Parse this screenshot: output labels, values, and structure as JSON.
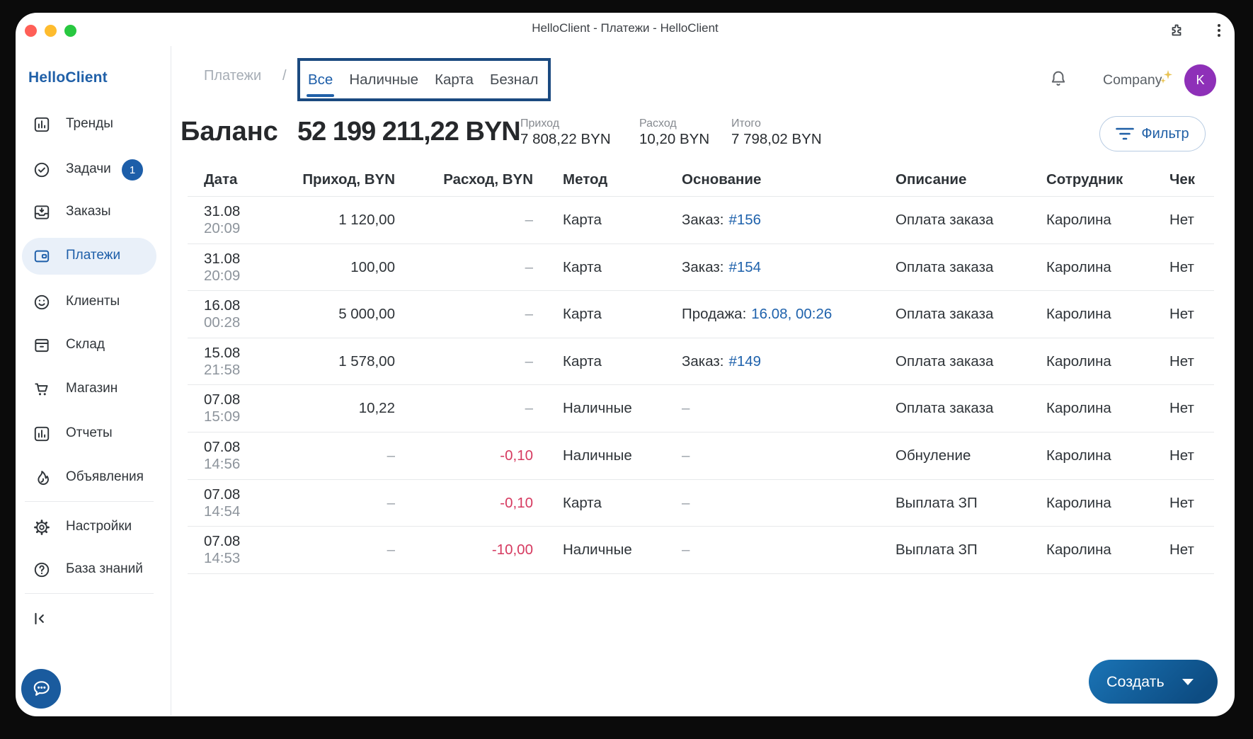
{
  "titlebar": {
    "title": "HelloClient - Платежи - HelloClient"
  },
  "sidebar": {
    "logo": "HelloClient",
    "items": [
      {
        "label": "Тренды",
        "icon": "bar-chart-icon"
      },
      {
        "label": "Задачи",
        "icon": "check-circle-icon",
        "badge": "1"
      },
      {
        "label": "Заказы",
        "icon": "inbox-icon"
      },
      {
        "label": "Платежи",
        "icon": "wallet-icon",
        "active": true
      },
      {
        "label": "Клиенты",
        "icon": "smiley-icon"
      },
      {
        "label": "Склад",
        "icon": "box-icon"
      },
      {
        "label": "Магазин",
        "icon": "cart-icon"
      },
      {
        "label": "Отчеты",
        "icon": "bar-chart-icon"
      },
      {
        "label": "Объявления",
        "icon": "flame-icon",
        "divider_after": true
      },
      {
        "label": "Настройки",
        "icon": "gear-icon"
      },
      {
        "label": "База знаний",
        "icon": "question-circle-icon",
        "divider_after": true
      }
    ]
  },
  "header": {
    "breadcrumb": "Платежи",
    "separator": "/",
    "tabs": [
      {
        "label": "Все",
        "active": true
      },
      {
        "label": "Наличные"
      },
      {
        "label": "Карта"
      },
      {
        "label": "Безнал"
      }
    ],
    "company": "Company",
    "avatar_letter": "K"
  },
  "balance": {
    "label": "Баланс",
    "value": "52 199 211,22 BYN",
    "stats": [
      {
        "label": "Приход",
        "value": "7 808,22 BYN"
      },
      {
        "label": "Расход",
        "value": "10,20 BYN"
      },
      {
        "label": "Итого",
        "value": "7 798,02 BYN"
      }
    ],
    "filter_label": "Фильтр"
  },
  "table": {
    "columns": [
      "Дата",
      "Приход, BYN",
      "Расход, BYN",
      "Метод",
      "Основание",
      "Описание",
      "Сотрудник",
      "Чек"
    ],
    "rows": [
      {
        "date": "31.08",
        "time": "20:09",
        "income": "1 120,00",
        "expense": "–",
        "method": "Карта",
        "basis_prefix": "Заказ:",
        "basis_link": "#156",
        "description": "Оплата заказа",
        "employee": "Каролина",
        "receipt": "Нет"
      },
      {
        "date": "31.08",
        "time": "20:09",
        "income": "100,00",
        "expense": "–",
        "method": "Карта",
        "basis_prefix": "Заказ:",
        "basis_link": "#154",
        "description": "Оплата заказа",
        "employee": "Каролина",
        "receipt": "Нет"
      },
      {
        "date": "16.08",
        "time": "00:28",
        "income": "5 000,00",
        "expense": "–",
        "method": "Карта",
        "basis_prefix": "Продажа:",
        "basis_link": "16.08, 00:26",
        "description": "Оплата заказа",
        "employee": "Каролина",
        "receipt": "Нет"
      },
      {
        "date": "15.08",
        "time": "21:58",
        "income": "1 578,00",
        "expense": "–",
        "method": "Карта",
        "basis_prefix": "Заказ:",
        "basis_link": "#149",
        "description": "Оплата заказа",
        "employee": "Каролина",
        "receipt": "Нет"
      },
      {
        "date": "07.08",
        "time": "15:09",
        "income": "10,22",
        "expense": "–",
        "method": "Наличные",
        "basis_prefix": "–",
        "basis_link": "",
        "description": "Оплата заказа",
        "employee": "Каролина",
        "receipt": "Нет"
      },
      {
        "date": "07.08",
        "time": "14:56",
        "income": "–",
        "expense": "-0,10",
        "method": "Наличные",
        "basis_prefix": "–",
        "basis_link": "",
        "description": "Обнуление",
        "employee": "Каролина",
        "receipt": "Нет"
      },
      {
        "date": "07.08",
        "time": "14:54",
        "income": "–",
        "expense": "-0,10",
        "method": "Карта",
        "basis_prefix": "–",
        "basis_link": "",
        "description": "Выплата ЗП",
        "employee": "Каролина",
        "receipt": "Нет"
      },
      {
        "date": "07.08",
        "time": "14:53",
        "income": "–",
        "expense": "-10,00",
        "method": "Наличные",
        "basis_prefix": "–",
        "basis_link": "",
        "description": "Выплата ЗП",
        "employee": "Каролина",
        "receipt": "Нет"
      }
    ]
  },
  "create_button": {
    "label": "Создать"
  },
  "colors": {
    "accent_blue": "#1d5ea9",
    "link_blue": "#1f62ac",
    "negative_red": "#d63a60",
    "annotation_box": "#1b4a80",
    "avatar_purple": "#8e30b8",
    "active_item_bg": "#e9f0f9"
  }
}
